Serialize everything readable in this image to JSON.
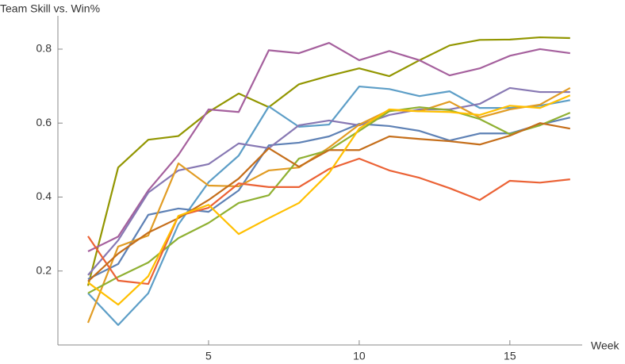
{
  "chart_data": {
    "type": "line",
    "title": "Team Skill vs. Win%",
    "x_label": "Week",
    "x": [
      1,
      2,
      3,
      4,
      5,
      6,
      7,
      8,
      9,
      10,
      11,
      12,
      13,
      14,
      15,
      16,
      17
    ],
    "xlim": [
      0,
      17.4
    ],
    "xticks": [
      5,
      10,
      15
    ],
    "ylim": [
      0,
      0.89
    ],
    "yticks": [
      0.2,
      0.4,
      0.6,
      0.8
    ],
    "series": [
      {
        "color": "#929600",
        "values": [
          0.16,
          0.48,
          0.555,
          0.565,
          0.63,
          0.68,
          0.643,
          0.705,
          0.728,
          0.748,
          0.727,
          0.77,
          0.81,
          0.825,
          0.826,
          0.832,
          0.83
        ]
      },
      {
        "color": "#A5609D",
        "values": [
          0.253,
          0.293,
          0.418,
          0.514,
          0.637,
          0.63,
          0.797,
          0.789,
          0.817,
          0.77,
          0.795,
          0.77,
          0.729,
          0.748,
          0.782,
          0.8,
          0.789
        ]
      },
      {
        "color": "#5D9EC7",
        "values": [
          0.14,
          0.054,
          0.14,
          0.326,
          0.44,
          0.512,
          0.645,
          0.59,
          0.596,
          0.699,
          0.692,
          0.673,
          0.686,
          0.641,
          0.641,
          0.647,
          0.662
        ]
      },
      {
        "color": "#5E81B5",
        "values": [
          0.178,
          0.219,
          0.352,
          0.369,
          0.36,
          0.418,
          0.54,
          0.547,
          0.564,
          0.598,
          0.592,
          0.579,
          0.553,
          0.572,
          0.572,
          0.596,
          0.615
        ]
      },
      {
        "color": "#8778B3",
        "values": [
          0.189,
          0.283,
          0.412,
          0.472,
          0.489,
          0.545,
          0.532,
          0.594,
          0.607,
          0.594,
          0.622,
          0.637,
          0.637,
          0.652,
          0.695,
          0.684,
          0.684
        ]
      },
      {
        "color": "#E19C24",
        "values": [
          0.06,
          0.266,
          0.296,
          0.491,
          0.431,
          0.429,
          0.472,
          0.48,
          0.534,
          0.596,
          0.635,
          0.632,
          0.658,
          0.615,
          0.637,
          0.65,
          0.695
        ]
      },
      {
        "color": "#8FB032",
        "values": [
          0.14,
          0.184,
          0.223,
          0.289,
          0.33,
          0.384,
          0.405,
          0.504,
          0.527,
          0.579,
          0.632,
          0.643,
          0.635,
          0.611,
          0.57,
          0.594,
          0.628
        ]
      },
      {
        "color": "#EB6235",
        "values": [
          0.294,
          0.174,
          0.165,
          0.349,
          0.371,
          0.437,
          0.427,
          0.427,
          0.476,
          0.504,
          0.472,
          0.452,
          0.424,
          0.392,
          0.444,
          0.439,
          0.448
        ]
      },
      {
        "color": "#C56E1A",
        "values": [
          0.172,
          0.247,
          0.304,
          0.343,
          0.392,
          0.45,
          0.532,
          0.482,
          0.527,
          0.527,
          0.564,
          0.557,
          0.551,
          0.542,
          0.566,
          0.6,
          0.585
        ]
      },
      {
        "color": "#FFBF00",
        "values": [
          0.169,
          0.109,
          0.186,
          0.349,
          0.379,
          0.3,
          0.343,
          0.384,
          0.465,
          0.585,
          0.637,
          0.632,
          0.63,
          0.622,
          0.647,
          0.641,
          0.675
        ]
      }
    ]
  }
}
